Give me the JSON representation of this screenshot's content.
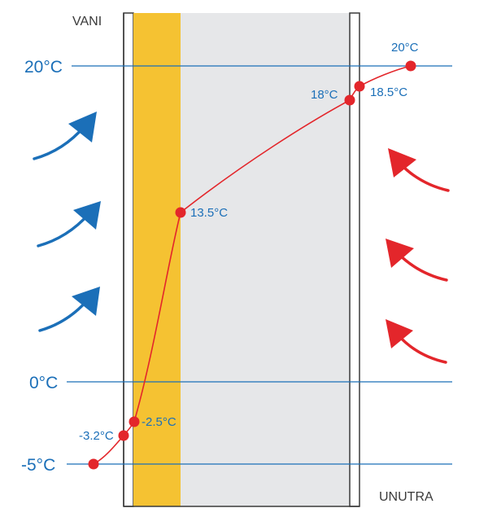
{
  "labels": {
    "outside": "VANI",
    "inside": "UNUTRA"
  },
  "reference_lines": [
    {
      "temp": 20,
      "label": "20°C"
    },
    {
      "temp": 0,
      "label": "0°C"
    },
    {
      "temp": -5,
      "label": "-5°C"
    }
  ],
  "temperature_points": [
    {
      "temp": -5,
      "label": ""
    },
    {
      "temp": -3.2,
      "label": "-3.2°C"
    },
    {
      "temp": -2.5,
      "label": "-2.5°C"
    },
    {
      "temp": 13.5,
      "label": "13.5°C"
    },
    {
      "temp": 18,
      "label": "18°C"
    },
    {
      "temp": 18.5,
      "label": "18.5°C"
    },
    {
      "temp": 20,
      "label": "20°C"
    }
  ],
  "layers": [
    {
      "name": "outer-render",
      "color": "#ffffff"
    },
    {
      "name": "insulation",
      "color": "#f5c232"
    },
    {
      "name": "masonry",
      "color": "#e6e7e9"
    },
    {
      "name": "inner-plaster",
      "color": "#ffffff"
    }
  ],
  "arrows": {
    "cold_color": "#1b6fb8",
    "warm_color": "#e3262b",
    "cold_count": 3,
    "warm_count": 3
  },
  "colors": {
    "line": "#1b6fb8",
    "curve": "#e3262b",
    "point": "#e3262b",
    "label": "#1b6fb8",
    "wall_edge": "#3a3a3a"
  }
}
